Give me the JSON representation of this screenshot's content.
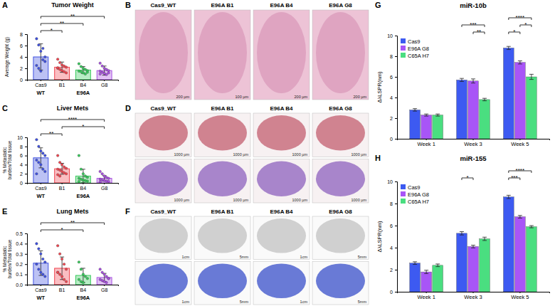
{
  "chart_data": [
    {
      "panel": "A",
      "type": "bar",
      "title": "Tumor Weight",
      "ylabel": "Average Weight (g)",
      "categories": [
        "Cas9",
        "B1",
        "B4",
        "G8"
      ],
      "groups": [
        {
          "label": "WT",
          "categories": [
            "Cas9"
          ]
        },
        {
          "label": "E96A",
          "categories": [
            "B1",
            "B4",
            "G8"
          ]
        }
      ],
      "colors": [
        "#3f51e0",
        "#f0454f",
        "#35c95a",
        "#a84fe0"
      ],
      "values": [
        4.0,
        2.2,
        1.7,
        1.6
      ],
      "errors": [
        2.3,
        0.9,
        0.6,
        0.8
      ],
      "points": [
        [
          7.2,
          6.1,
          5.0,
          3.5,
          3.2,
          2.5,
          2.0,
          1.5,
          5.5,
          4.0
        ],
        [
          3.6,
          3.0,
          2.6,
          2.4,
          2.2,
          2.0,
          1.8,
          1.6,
          1.4,
          1.2,
          2.1
        ],
        [
          2.8,
          2.3,
          2.0,
          1.8,
          1.6,
          1.5,
          1.4,
          1.2,
          1.0,
          1.3
        ],
        [
          2.9,
          2.4,
          2.0,
          1.8,
          1.6,
          1.5,
          1.3,
          1.1,
          0.9,
          1.2,
          1.0
        ]
      ],
      "ylim": [
        0,
        8
      ],
      "yticks": [
        0,
        2,
        4,
        6,
        8
      ],
      "comparisons": [
        {
          "groups": [
            "Cas9",
            "B1"
          ],
          "label": "*"
        },
        {
          "groups": [
            "Cas9",
            "B4"
          ],
          "label": "**"
        },
        {
          "groups": [
            "Cas9",
            "G8"
          ],
          "label": "**"
        }
      ]
    },
    {
      "panel": "C",
      "type": "bar",
      "title": "Liver Mets",
      "ylabel": "% Metastatic burden/Total tissue",
      "categories": [
        "Cas9",
        "B1",
        "B4",
        "G8"
      ],
      "groups": [
        {
          "label": "WT",
          "categories": [
            "Cas9"
          ]
        },
        {
          "label": "E96A",
          "categories": [
            "B1",
            "B4",
            "G8"
          ]
        }
      ],
      "colors": [
        "#3f51e0",
        "#f0454f",
        "#35c95a",
        "#a84fe0"
      ],
      "values": [
        5.5,
        3.1,
        1.5,
        1.0
      ],
      "errors": [
        2.2,
        1.2,
        1.5,
        0.6
      ],
      "points": [
        [
          9.5,
          8.0,
          7.0,
          6.5,
          6.0,
          5.0,
          4.5,
          4.0,
          3.0,
          2.5,
          2.0
        ],
        [
          6.0,
          4.5,
          4.0,
          3.5,
          3.2,
          3.0,
          2.8,
          2.5,
          2.2,
          2.0,
          1.8,
          1.5
        ],
        [
          6.0,
          3.0,
          2.0,
          1.5,
          1.2,
          1.0,
          0.8,
          0.6,
          0.5,
          0.4,
          0.3
        ],
        [
          2.5,
          2.0,
          1.5,
          1.2,
          1.0,
          0.8,
          0.6,
          0.5,
          0.4,
          0.3,
          0.2
        ]
      ],
      "ylim": [
        0,
        10
      ],
      "yticks": [
        0,
        2,
        4,
        6,
        8,
        10
      ],
      "comparisons": [
        {
          "groups": [
            "Cas9",
            "B1"
          ],
          "label": "**"
        },
        {
          "groups": [
            "B1",
            "G8"
          ],
          "label": "*"
        },
        {
          "groups": [
            "Cas9",
            "G8"
          ],
          "label": "****"
        }
      ]
    },
    {
      "panel": "E",
      "type": "bar",
      "title": "Lung Mets",
      "ylabel": "% Metastatic burden/Total tissue",
      "categories": [
        "Cas9",
        "B1",
        "B4",
        "G8"
      ],
      "groups": [
        {
          "label": "WT",
          "categories": [
            "Cas9"
          ]
        },
        {
          "label": "E96A",
          "categories": [
            "B1",
            "B4",
            "G8"
          ]
        }
      ],
      "colors": [
        "#3f51e0",
        "#f0454f",
        "#35c95a",
        "#a84fe0"
      ],
      "values": [
        0.21,
        0.16,
        0.09,
        0.07
      ],
      "errors": [
        0.12,
        0.11,
        0.07,
        0.04
      ],
      "points": [
        [
          0.4,
          0.35,
          0.3,
          0.25,
          0.22,
          0.2,
          0.15,
          0.12,
          0.1,
          0.08
        ],
        [
          0.38,
          0.3,
          0.25,
          0.2,
          0.15,
          0.12,
          0.1,
          0.08,
          0.05,
          0.03,
          0.12
        ],
        [
          0.22,
          0.15,
          0.1,
          0.08,
          0.06,
          0.05,
          0.03,
          0.02
        ],
        [
          0.15,
          0.12,
          0.1,
          0.08,
          0.06,
          0.05,
          0.04,
          0.03,
          0.02,
          0.06
        ]
      ],
      "ylim": [
        0,
        0.5
      ],
      "yticks": [
        {
          "value": 0,
          "label": "0.0"
        },
        0.1,
        0.2,
        0.3,
        0.4,
        0.5
      ],
      "comparisons": [
        {
          "groups": [
            "Cas9",
            "B4"
          ],
          "label": "*"
        },
        {
          "groups": [
            "Cas9",
            "G8"
          ],
          "label": "**"
        }
      ]
    },
    {
      "panel": "G",
      "type": "bar",
      "title": "miR-10b",
      "ylabel": "ΔλLSPR(nm)",
      "categories": [
        "Week 1",
        "Week 3",
        "Week 5"
      ],
      "series": [
        {
          "name": "Cas9",
          "color": "#3d5af1",
          "values": [
            2.8,
            5.7,
            8.8
          ],
          "errors": [
            0.12,
            0.15,
            0.15
          ]
        },
        {
          "name": "E96A G8",
          "color": "#a855f7",
          "values": [
            2.3,
            5.6,
            7.4
          ],
          "errors": [
            0.1,
            0.2,
            0.15
          ]
        },
        {
          "name": "C65A H7",
          "color": "#4ade80",
          "values": [
            2.3,
            3.8,
            6.0
          ],
          "errors": [
            0.1,
            0.12,
            0.25
          ]
        }
      ],
      "ylim": [
        0,
        10
      ],
      "yticks": [
        0,
        2,
        4,
        6,
        8,
        10
      ],
      "legend": "upper left",
      "comparisons": [
        {
          "category": "Week 3",
          "series": [
            "E96A G8",
            "C65A H7"
          ],
          "label": "**"
        },
        {
          "category": "Week 3",
          "series": [
            "Cas9",
            "C65A H7"
          ],
          "label": "***"
        },
        {
          "category": "Week 5",
          "series": [
            "Cas9",
            "E96A G8"
          ],
          "label": "*"
        },
        {
          "category": "Week 5",
          "series": [
            "E96A G8",
            "C65A H7"
          ],
          "label": "*"
        },
        {
          "category": "Week 5",
          "series": [
            "Cas9",
            "C65A H7"
          ],
          "label": "****"
        }
      ]
    },
    {
      "panel": "H",
      "type": "bar",
      "title": "miR-155",
      "ylabel": "ΔλLSPR(nm)",
      "categories": [
        "Week 1",
        "Week 3",
        "Week 5"
      ],
      "series": [
        {
          "name": "Cas9",
          "color": "#3d5af1",
          "values": [
            2.6,
            5.3,
            8.6
          ],
          "errors": [
            0.12,
            0.15,
            0.15
          ]
        },
        {
          "name": "E96A G8",
          "color": "#a855f7",
          "values": [
            1.8,
            4.1,
            6.8
          ],
          "errors": [
            0.15,
            0.12,
            0.12
          ]
        },
        {
          "name": "C65A H7",
          "color": "#4ade80",
          "values": [
            2.4,
            4.8,
            5.9
          ],
          "errors": [
            0.12,
            0.15,
            0.1
          ]
        }
      ],
      "ylim": [
        0,
        10
      ],
      "yticks": [
        0,
        2,
        4,
        6,
        8,
        10
      ],
      "legend": "upper left",
      "comparisons": [
        {
          "category": "Week 3",
          "series": [
            "Cas9",
            "E96A G8"
          ],
          "label": "*"
        },
        {
          "category": "Week 5",
          "series": [
            "Cas9",
            "E96A G8"
          ],
          "label": "***"
        },
        {
          "category": "Week 5",
          "series": [
            "Cas9",
            "C65A H7"
          ],
          "label": "****"
        }
      ]
    }
  ],
  "image_panels": [
    {
      "panel": "B",
      "columns": [
        "Cas9_WT",
        "E96A B1",
        "E96A B4",
        "E96A G8"
      ],
      "rows": [
        {
          "scale_labels": [
            "200 µm",
            "100 µm",
            "200 µm",
            "200 µm"
          ]
        }
      ]
    },
    {
      "panel": "D",
      "columns": [
        "Cas9_WT",
        "E96A B1",
        "E96A B4",
        "E96A G8"
      ],
      "rows": [
        {
          "scale_labels": [
            "1000 µm",
            "1000 µm",
            "1000 µm",
            "1000 µm"
          ]
        },
        {
          "scale_labels": [
            "1000 µm",
            "1000 µm",
            "1000 µm",
            "1000 µm"
          ]
        }
      ]
    },
    {
      "panel": "F",
      "columns": [
        "Cas9_WT",
        "E96A B1",
        "E96A B4",
        "E96A G8"
      ],
      "rows": [
        {
          "scale_labels": [
            "1cm",
            "5mm",
            "1cm",
            "5mm"
          ]
        },
        {
          "scale_labels": [
            "1cm",
            "5mm",
            "1cm",
            "5mm"
          ]
        }
      ]
    }
  ]
}
